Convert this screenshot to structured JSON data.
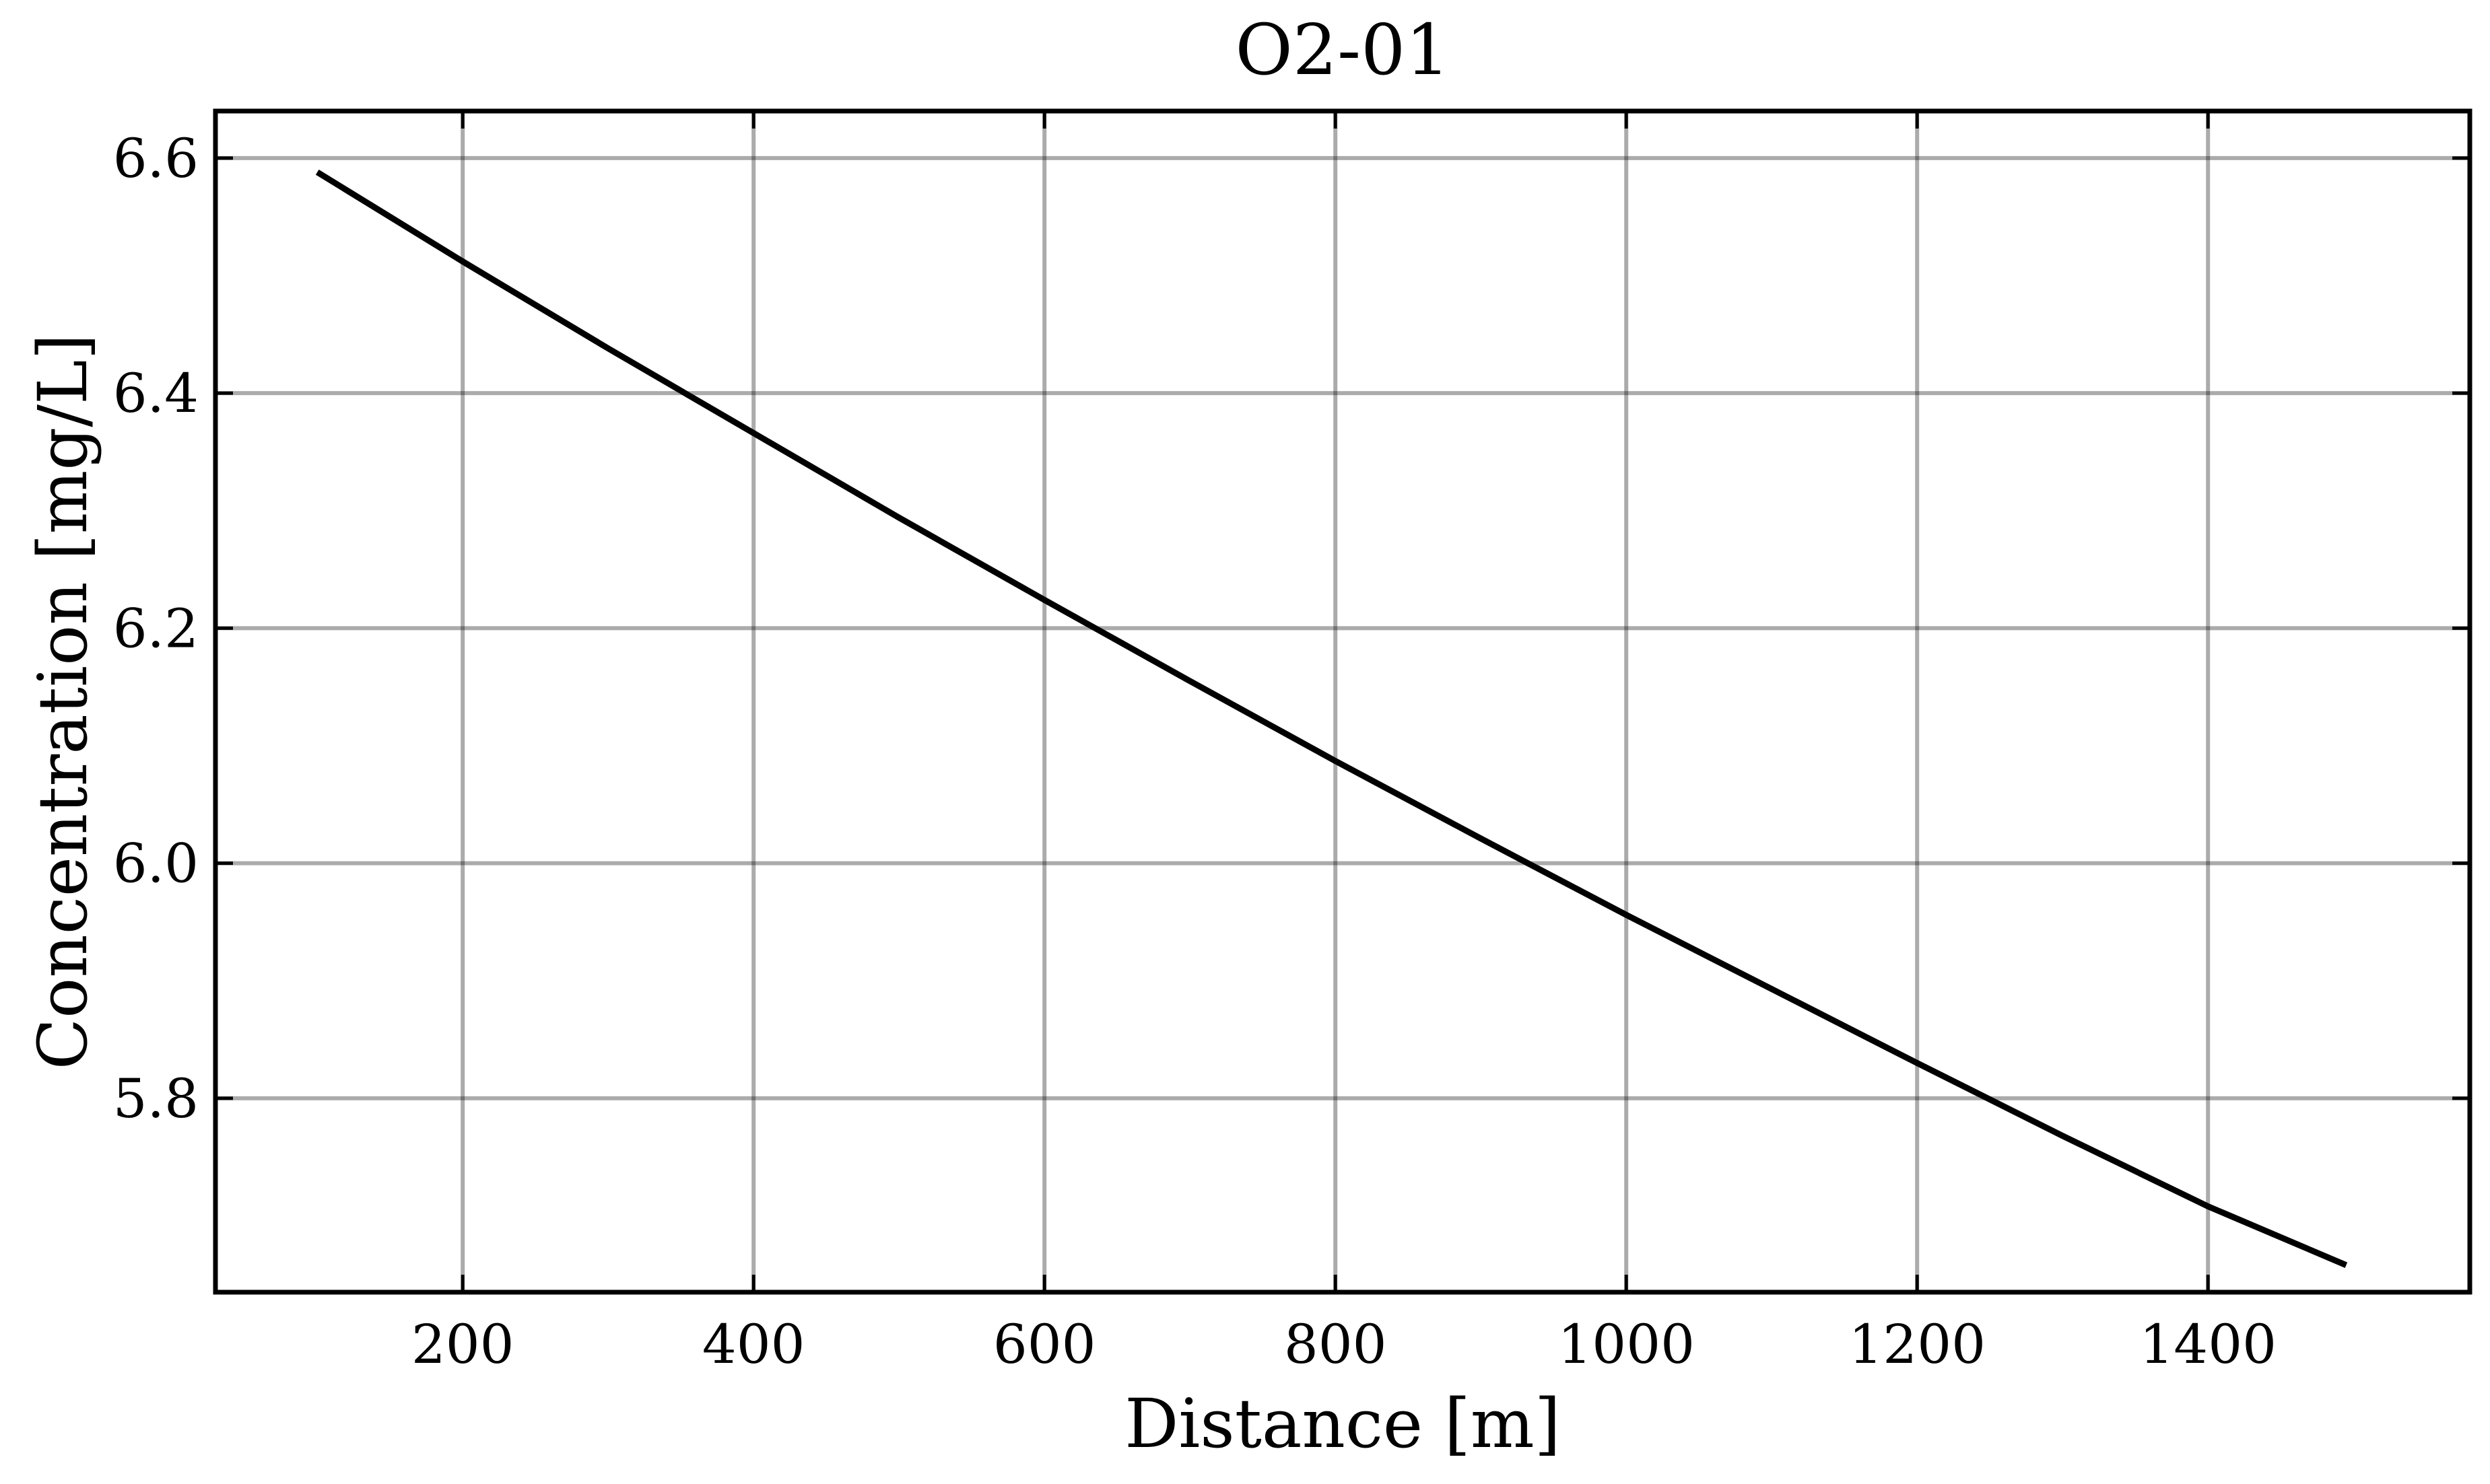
{
  "chart_data": {
    "type": "line",
    "title": "O2-01",
    "xlabel": "Distance [m]",
    "ylabel": "Concentration [mg/L]",
    "xlim": [
      30,
      1580
    ],
    "ylim": [
      5.635,
      6.64
    ],
    "xticks": [
      200,
      400,
      600,
      800,
      1000,
      1200,
      1400
    ],
    "xtick_labels": [
      "200",
      "400",
      "600",
      "800",
      "1000",
      "1200",
      "1400"
    ],
    "yticks": [
      5.8,
      6.0,
      6.2,
      6.4,
      6.6
    ],
    "ytick_labels": [
      "5.8",
      "6.0",
      "6.2",
      "6.4",
      "6.6"
    ],
    "grid": true,
    "series": [
      {
        "color": "#000000",
        "x": [
          100,
          200,
          300,
          400,
          500,
          600,
          700,
          800,
          900,
          1000,
          1100,
          1200,
          1300,
          1400,
          1495
        ],
        "y": [
          6.588,
          6.512,
          6.438,
          6.366,
          6.294,
          6.224,
          6.155,
          6.087,
          6.021,
          5.956,
          5.893,
          5.83,
          5.768,
          5.708,
          5.658
        ]
      }
    ]
  }
}
